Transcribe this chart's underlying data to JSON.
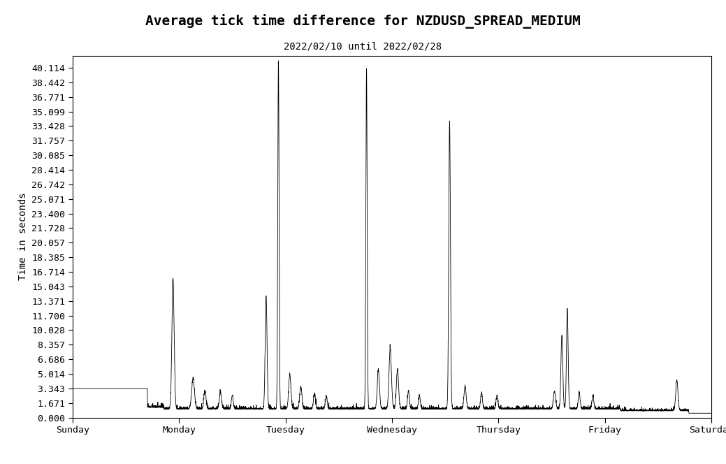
{
  "title": "Average tick time difference for NZDUSD_SPREAD_MEDIUM",
  "subtitle": "2022/02/10 until 2022/02/28",
  "ylabel": "Time in seconds",
  "yticks": [
    0.0,
    1.671,
    3.343,
    5.014,
    6.686,
    8.357,
    10.028,
    11.7,
    13.371,
    15.043,
    16.714,
    18.385,
    20.057,
    21.728,
    23.4,
    25.071,
    26.742,
    28.414,
    30.085,
    31.757,
    33.428,
    35.099,
    36.771,
    38.442,
    40.114
  ],
  "xtick_labels": [
    "Sunday",
    "Monday",
    "Tuesday",
    "Wednesday",
    "Thursday",
    "Friday",
    "Saturday"
  ],
  "xtick_positions": [
    0,
    1,
    2,
    3,
    4,
    5,
    6
  ],
  "ylim": [
    0.0,
    41.5
  ],
  "xlim": [
    0.0,
    6.0
  ],
  "line_color": "black",
  "bg_color": "white",
  "title_fontsize": 14,
  "subtitle_fontsize": 10,
  "label_fontsize": 10,
  "tick_fontsize": 9.5
}
